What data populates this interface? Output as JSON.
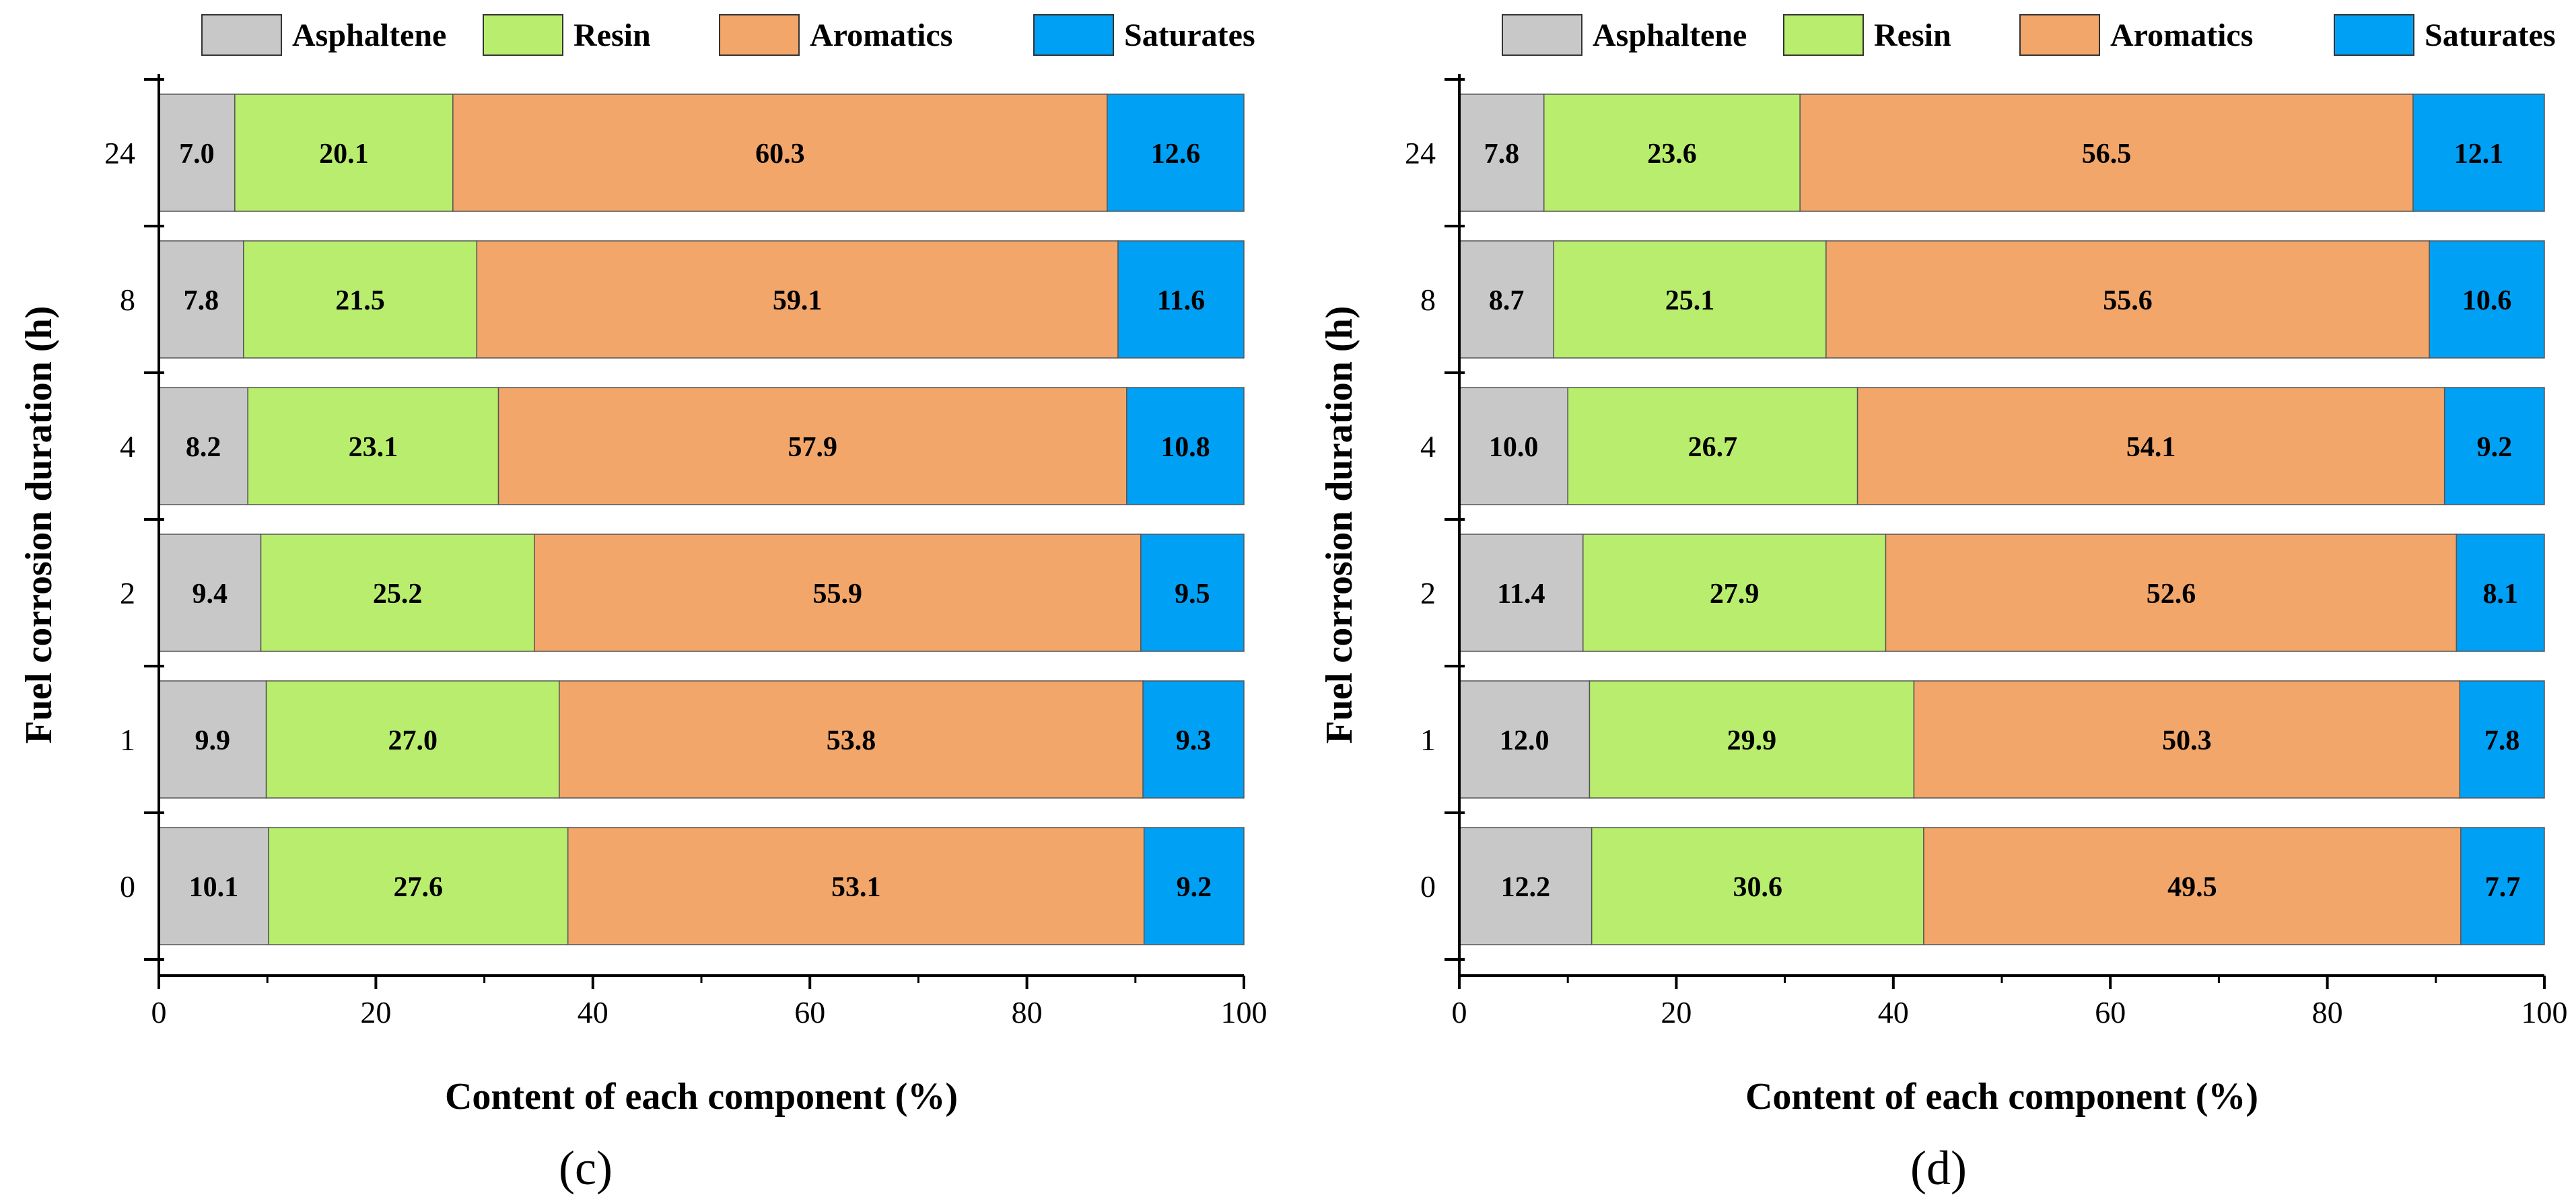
{
  "colors": {
    "Asphaltene": "#c8c8c8",
    "Resin": "#b9ed6d",
    "Aromatics": "#f2a66a",
    "Saturates": "#00a0f5"
  },
  "chart_data": [
    {
      "type": "bar",
      "orientation": "horizontal",
      "stacked": true,
      "panel_label": "(c)",
      "xlabel": "Content of each component (%)",
      "ylabel": "Fuel corrosion duration (h)",
      "xlim": [
        0,
        100
      ],
      "xticks": [
        "0",
        "20",
        "40",
        "60",
        "80",
        "100"
      ],
      "categories": [
        "24",
        "8",
        "4",
        "2",
        "1",
        "0"
      ],
      "legend": [
        "Asphaltene",
        "Resin",
        "Aromatics",
        "Saturates"
      ],
      "series": [
        {
          "name": "Asphaltene",
          "values": [
            7.0,
            7.8,
            8.2,
            9.4,
            9.9,
            10.1
          ],
          "labels": [
            "7.0",
            "7.8",
            "8.2",
            "9.4",
            "9.9",
            "10.1"
          ]
        },
        {
          "name": "Resin",
          "values": [
            20.1,
            21.5,
            23.1,
            25.2,
            27.0,
            27.6
          ],
          "labels": [
            "20.1",
            "21.5",
            "23.1",
            "25.2",
            "27.0",
            "27.6"
          ]
        },
        {
          "name": "Aromatics",
          "values": [
            60.3,
            59.1,
            57.9,
            55.9,
            53.8,
            53.1
          ],
          "labels": [
            "60.3",
            "59.1",
            "57.9",
            "55.9",
            "53.8",
            "53.1"
          ]
        },
        {
          "name": "Saturates",
          "values": [
            12.6,
            11.6,
            10.8,
            9.5,
            9.3,
            9.2
          ],
          "labels": [
            "12.6",
            "11.6",
            "10.8",
            "9.5",
            "9.3",
            "9.2"
          ]
        }
      ]
    },
    {
      "type": "bar",
      "orientation": "horizontal",
      "stacked": true,
      "panel_label": "(d)",
      "xlabel": "Content of each component (%)",
      "ylabel": "Fuel corrosion duration (h)",
      "xlim": [
        0,
        100
      ],
      "xticks": [
        "0",
        "20",
        "40",
        "60",
        "80",
        "100"
      ],
      "categories": [
        "24",
        "8",
        "4",
        "2",
        "1",
        "0"
      ],
      "legend": [
        "Asphaltene",
        "Resin",
        "Aromatics",
        "Saturates"
      ],
      "series": [
        {
          "name": "Asphaltene",
          "values": [
            7.8,
            8.7,
            10.0,
            11.4,
            12.0,
            12.2
          ],
          "labels": [
            "7.8",
            "8.7",
            "10.0",
            "11.4",
            "12.0",
            "12.2"
          ]
        },
        {
          "name": "Resin",
          "values": [
            23.6,
            25.1,
            26.7,
            27.9,
            29.9,
            30.6
          ],
          "labels": [
            "23.6",
            "25.1",
            "26.7",
            "27.9",
            "29.9",
            "30.6"
          ]
        },
        {
          "name": "Aromatics",
          "values": [
            56.5,
            55.6,
            54.1,
            52.6,
            50.3,
            49.5
          ],
          "labels": [
            "56.5",
            "55.6",
            "54.1",
            "52.6",
            "50.3",
            "49.5"
          ]
        },
        {
          "name": "Saturates",
          "values": [
            12.1,
            10.6,
            9.2,
            8.1,
            7.8,
            7.7
          ],
          "labels": [
            "12.1",
            "10.6",
            "9.2",
            "8.1",
            "7.8",
            "7.7"
          ]
        }
      ]
    }
  ]
}
